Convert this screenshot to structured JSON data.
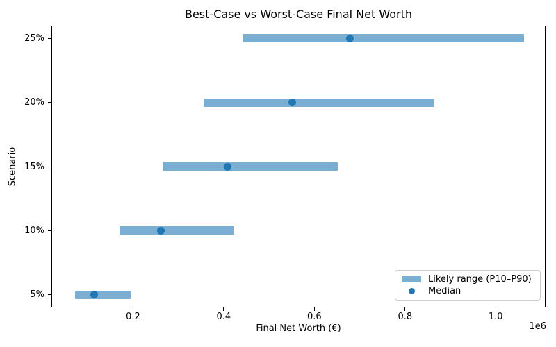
{
  "chart_data": {
    "type": "bar",
    "orientation": "horizontal",
    "title": "Best-Case vs Worst-Case Final Net Worth",
    "xlabel": "Final Net Worth (€)",
    "ylabel": "Scenario",
    "x_offset_label": "1e6",
    "categories": [
      "5%",
      "10%",
      "15%",
      "20%",
      "25%"
    ],
    "series": [
      {
        "name": "Likely range (P10–P90)",
        "type": "range_bar",
        "p10": [
          72000,
          170000,
          265000,
          355000,
          441000
        ],
        "p90": [
          195000,
          423000,
          652000,
          864000,
          1062000
        ]
      },
      {
        "name": "Median",
        "type": "scatter",
        "values": [
          114000,
          261000,
          408000,
          551000,
          678000
        ]
      }
    ],
    "xlim": [
      20000,
      1110000
    ],
    "x_ticks": [
      200000,
      400000,
      600000,
      800000,
      1000000
    ],
    "x_tick_labels": [
      "0.2",
      "0.4",
      "0.6",
      "0.8",
      "1.0"
    ],
    "grid": false,
    "legend_position": "lower right",
    "colors": {
      "range_bar": "#7aaed3",
      "median_dot": "#1f77b4"
    }
  }
}
